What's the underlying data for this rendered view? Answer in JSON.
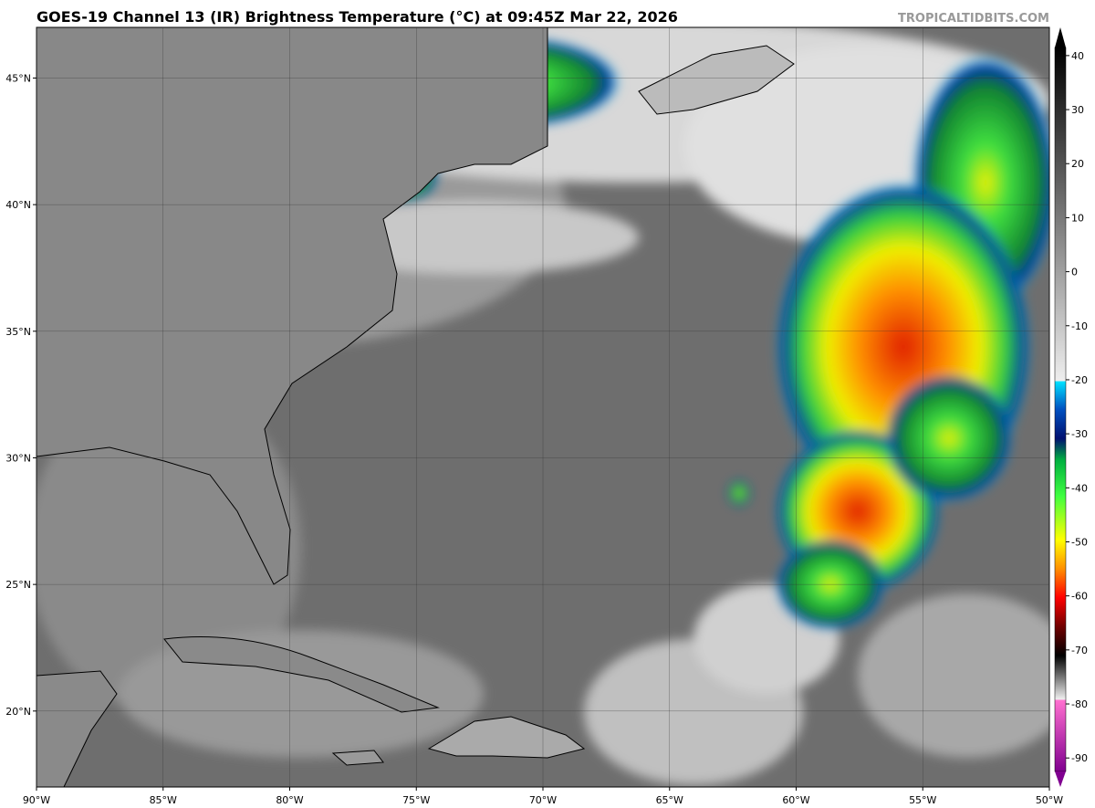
{
  "header": {
    "title": "GOES-19 Channel 13 (IR) Brightness Temperature (°C) at 09:45Z Mar 22, 2026",
    "credit": "TROPICALTIDBITS.COM"
  },
  "map": {
    "lon_lim": [
      -90,
      -50
    ],
    "lat_lim": [
      17,
      47
    ],
    "lon_ticks": [
      {
        "value": -90,
        "label": "90°W"
      },
      {
        "value": -85,
        "label": "85°W"
      },
      {
        "value": -80,
        "label": "80°W"
      },
      {
        "value": -75,
        "label": "75°W"
      },
      {
        "value": -70,
        "label": "70°W"
      },
      {
        "value": -65,
        "label": "65°W"
      },
      {
        "value": -60,
        "label": "60°W"
      },
      {
        "value": -55,
        "label": "55°W"
      },
      {
        "value": -50,
        "label": "50°W"
      }
    ],
    "lat_ticks": [
      {
        "value": 20,
        "label": "20°N"
      },
      {
        "value": 25,
        "label": "25°N"
      },
      {
        "value": 30,
        "label": "30°N"
      },
      {
        "value": 35,
        "label": "35°N"
      },
      {
        "value": 40,
        "label": "40°N"
      },
      {
        "value": 45,
        "label": "45°N"
      }
    ]
  },
  "colorbar": {
    "lim": [
      -92.5,
      41.5
    ],
    "ticks": [
      40,
      30,
      20,
      10,
      0,
      -10,
      -20,
      -30,
      -40,
      -50,
      -60,
      -70,
      -80,
      -90
    ]
  }
}
